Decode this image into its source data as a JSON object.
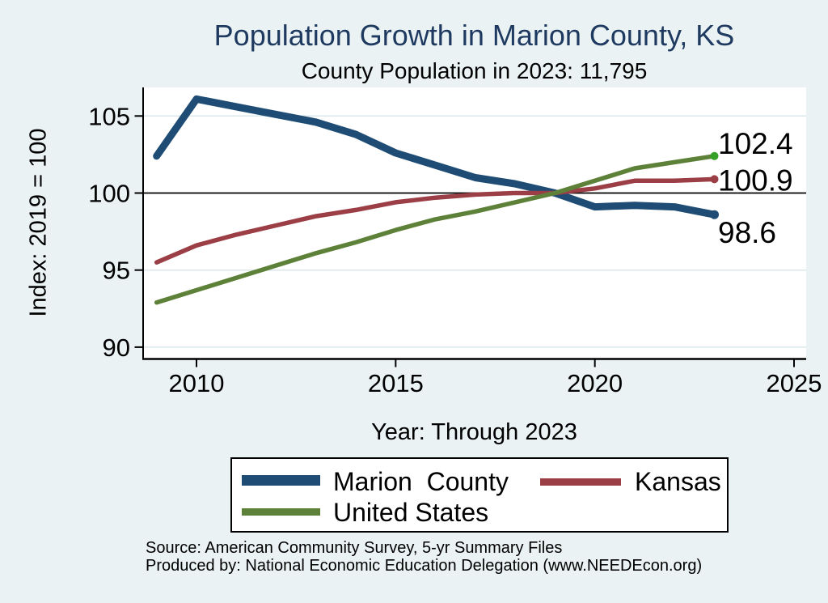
{
  "title": "Population Growth in Marion County, KS",
  "subtitle": "County Population in 2023: 11,795",
  "axes": {
    "y_title": "Index: 2019 = 100",
    "x_title": "Year: Through 2023"
  },
  "legend": {
    "items": [
      {
        "label": "Marion  County",
        "color": "#1e4c74"
      },
      {
        "label": "Kansas",
        "color": "#9b3e46"
      },
      {
        "label": "United States",
        "color": "#5e8139"
      }
    ]
  },
  "footer": {
    "source": "Source: American Community Survey, 5-yr Summary Files",
    "produced_by": "Produced by: National Economic Education Delegation (www.NEEDEcon.org)"
  },
  "colors": {
    "background": "#eaf2f3",
    "plot_background": "#ffffff",
    "grid_line": "#dbe7ea",
    "axis": "#000000",
    "title_color": "#1f3a60",
    "text": "#000000",
    "reference_line": "#000000",
    "us_end_marker": "#35a028"
  },
  "chart_data": {
    "type": "line",
    "title": "Population Growth in Marion County, KS",
    "subtitle": "County Population in 2023: 11,795",
    "xlabel": "Year: Through 2023",
    "ylabel": "Index: 2019 = 100",
    "x": [
      2009,
      2010,
      2011,
      2012,
      2013,
      2014,
      2015,
      2016,
      2017,
      2018,
      2019,
      2020,
      2021,
      2022,
      2023
    ],
    "series": [
      {
        "name": "Marion County",
        "color": "#1e4c74",
        "line_width": 9,
        "end_label": "98.6",
        "values": [
          102.4,
          106.1,
          105.6,
          105.1,
          104.6,
          103.8,
          102.6,
          101.8,
          101.0,
          100.6,
          100.0,
          99.1,
          99.2,
          99.1,
          98.6
        ]
      },
      {
        "name": "Kansas",
        "color": "#9b3e46",
        "line_width": 5.5,
        "end_label": "100.9",
        "values": [
          95.5,
          96.6,
          97.3,
          97.9,
          98.5,
          98.9,
          99.4,
          99.7,
          99.9,
          100.0,
          100.0,
          100.3,
          100.8,
          100.8,
          100.9
        ]
      },
      {
        "name": "United States",
        "color": "#5e8139",
        "line_width": 5.5,
        "end_label": "102.4",
        "end_marker_color": "#35a028",
        "values": [
          92.9,
          93.7,
          94.5,
          95.3,
          96.1,
          96.8,
          97.6,
          98.3,
          98.8,
          99.4,
          100.0,
          100.8,
          101.6,
          102.0,
          102.4
        ]
      }
    ],
    "x_ticks": [
      2010,
      2015,
      2020,
      2025
    ],
    "y_ticks": [
      90,
      95,
      100,
      105
    ],
    "xlim": [
      2008.6,
      2025.3
    ],
    "ylim": [
      89.3,
      106.9
    ],
    "reference_line_y": 100,
    "grid": true,
    "legend_position": "bottom"
  }
}
